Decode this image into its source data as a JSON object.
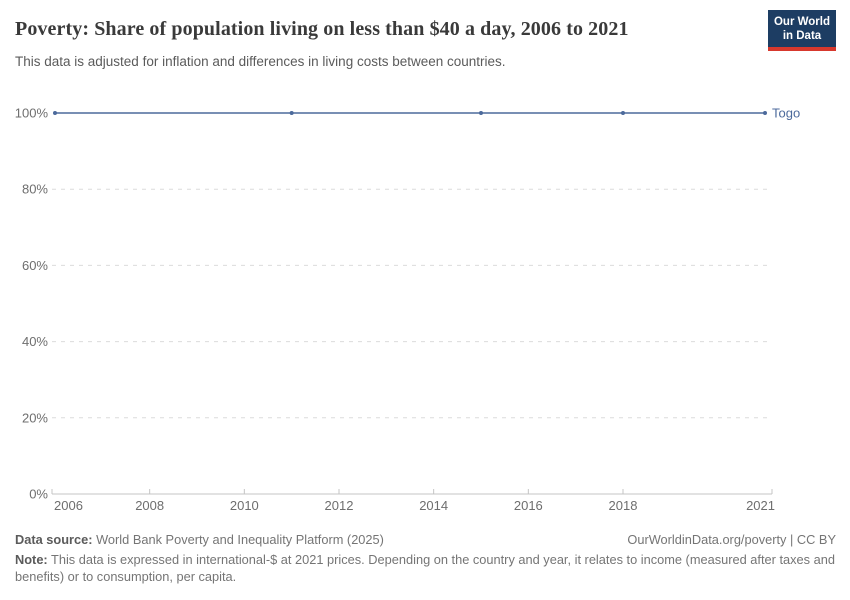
{
  "header": {
    "title": "Poverty: Share of population living on less than $40 a day, 2006 to 2021",
    "subtitle": "This data is adjusted for inflation and differences in living costs between countries.",
    "logo": {
      "line1": "Our World",
      "line2": "in Data",
      "bg_color": "#1d3d63",
      "accent_color": "#d7382d"
    }
  },
  "chart_data": {
    "type": "line",
    "title": "Poverty: Share of population living on less than $40 a day, 2006 to 2021",
    "subtitle": "This data is adjusted for inflation and differences in living costs between countries.",
    "series": [
      {
        "name": "Togo",
        "color": "#4c6a9c",
        "x": [
          2006,
          2011,
          2015,
          2018,
          2021
        ],
        "values": [
          100,
          100,
          100,
          100,
          100
        ]
      }
    ],
    "xlabel": "",
    "ylabel": "",
    "xlim": [
      2006,
      2021
    ],
    "ylim": [
      0,
      100
    ],
    "x_ticks": [
      2006,
      2008,
      2010,
      2012,
      2014,
      2016,
      2018,
      2021
    ],
    "x_tick_labels": [
      "2006",
      "2008",
      "2010",
      "2012",
      "2014",
      "2016",
      "2018",
      "2021"
    ],
    "y_ticks": [
      0,
      20,
      40,
      60,
      80,
      100
    ],
    "y_tick_labels": [
      "0%",
      "20%",
      "40%",
      "60%",
      "80%",
      "100%"
    ],
    "grid": "horizontal-dashed",
    "legend_position": "end-of-line-label",
    "end_label": "Togo",
    "colors": {
      "grid": "#dcdcdc",
      "axis": "#c4c4c4",
      "tick_label": "#6e6e6e"
    }
  },
  "footer": {
    "source_label": "Data source:",
    "source_text": " World Bank Poverty and Inequality Platform (2025)",
    "attribution": "OurWorldinData.org/poverty | CC BY",
    "note_label": "Note:",
    "note_text": " This data is expressed in international-$ at 2021 prices. Depending on the country and year, it relates to income (measured after taxes and benefits) or to consumption, per capita."
  }
}
